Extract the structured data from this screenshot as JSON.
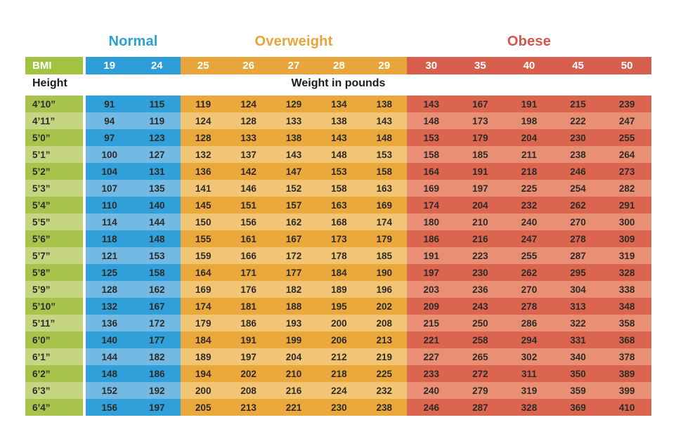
{
  "categories_header": {
    "normal": "Normal",
    "overweight": "Overweight",
    "obese": "Obese"
  },
  "bmi_header": {
    "label": "BMI"
  },
  "axis_labels": {
    "height": "Height",
    "weight": "Weight in pounds"
  },
  "colors": {
    "normal_accent": "#2d9ed8",
    "overweight_accent": "#e9a33c",
    "obese_accent": "#d6564a",
    "bmi_green": "#a2c342",
    "blue_dark": "#2fa0d9",
    "blue_light": "#72bae3",
    "orange_dark": "#eaa83d",
    "orange_light": "#f2c574",
    "red_dark": "#dc654f",
    "red_light": "#e88f74",
    "green_dark": "#a8c44d",
    "green_light": "#c6d680"
  },
  "chart_data": {
    "type": "table",
    "title": "BMI chart: weight in pounds by height and BMI",
    "column_groups": [
      {
        "name": "Normal",
        "bmi_columns": [
          "19",
          "24"
        ]
      },
      {
        "name": "Overweight",
        "bmi_columns": [
          "25",
          "26",
          "27",
          "28",
          "29"
        ]
      },
      {
        "name": "Obese",
        "bmi_columns": [
          "30",
          "35",
          "40",
          "45",
          "50"
        ]
      }
    ],
    "bmi_values": [
      "19",
      "24",
      "25",
      "26",
      "27",
      "28",
      "29",
      "30",
      "35",
      "40",
      "45",
      "50"
    ],
    "row_header": "Height",
    "value_unit": "Weight in pounds",
    "rows": [
      {
        "height": "4’10”",
        "values": [
          91,
          115,
          119,
          124,
          129,
          134,
          138,
          143,
          167,
          191,
          215,
          239
        ]
      },
      {
        "height": "4’11”",
        "values": [
          94,
          119,
          124,
          128,
          133,
          138,
          143,
          148,
          173,
          198,
          222,
          247
        ]
      },
      {
        "height": "5’0”",
        "values": [
          97,
          123,
          128,
          133,
          138,
          143,
          148,
          153,
          179,
          204,
          230,
          255
        ]
      },
      {
        "height": "5’1”",
        "values": [
          100,
          127,
          132,
          137,
          143,
          148,
          153,
          158,
          185,
          211,
          238,
          264
        ]
      },
      {
        "height": "5’2”",
        "values": [
          104,
          131,
          136,
          142,
          147,
          153,
          158,
          164,
          191,
          218,
          246,
          273
        ]
      },
      {
        "height": "5’3”",
        "values": [
          107,
          135,
          141,
          146,
          152,
          158,
          163,
          169,
          197,
          225,
          254,
          282
        ]
      },
      {
        "height": "5’4”",
        "values": [
          110,
          140,
          145,
          151,
          157,
          163,
          169,
          174,
          204,
          232,
          262,
          291
        ]
      },
      {
        "height": "5’5”",
        "values": [
          114,
          144,
          150,
          156,
          162,
          168,
          174,
          180,
          210,
          240,
          270,
          300
        ]
      },
      {
        "height": "5’6”",
        "values": [
          118,
          148,
          155,
          161,
          167,
          173,
          179,
          186,
          216,
          247,
          278,
          309
        ]
      },
      {
        "height": "5’7”",
        "values": [
          121,
          153,
          159,
          166,
          172,
          178,
          185,
          191,
          223,
          255,
          287,
          319
        ]
      },
      {
        "height": "5’8”",
        "values": [
          125,
          158,
          164,
          171,
          177,
          184,
          190,
          197,
          230,
          262,
          295,
          328
        ]
      },
      {
        "height": "5’9”",
        "values": [
          128,
          162,
          169,
          176,
          182,
          189,
          196,
          203,
          236,
          270,
          304,
          338
        ]
      },
      {
        "height": "5’10”",
        "values": [
          132,
          167,
          174,
          181,
          188,
          195,
          202,
          209,
          243,
          278,
          313,
          348
        ]
      },
      {
        "height": "5’11”",
        "values": [
          136,
          172,
          179,
          186,
          193,
          200,
          208,
          215,
          250,
          286,
          322,
          358
        ]
      },
      {
        "height": "6’0”",
        "values": [
          140,
          177,
          184,
          191,
          199,
          206,
          213,
          221,
          258,
          294,
          331,
          368
        ]
      },
      {
        "height": "6’1”",
        "values": [
          144,
          182,
          189,
          197,
          204,
          212,
          219,
          227,
          265,
          302,
          340,
          378
        ]
      },
      {
        "height": "6’2”",
        "values": [
          148,
          186,
          194,
          202,
          210,
          218,
          225,
          233,
          272,
          311,
          350,
          389
        ]
      },
      {
        "height": "6’3”",
        "values": [
          152,
          192,
          200,
          208,
          216,
          224,
          232,
          240,
          279,
          319,
          359,
          399
        ]
      },
      {
        "height": "6’4”",
        "values": [
          156,
          197,
          205,
          213,
          221,
          230,
          238,
          246,
          287,
          328,
          369,
          410
        ]
      }
    ]
  }
}
